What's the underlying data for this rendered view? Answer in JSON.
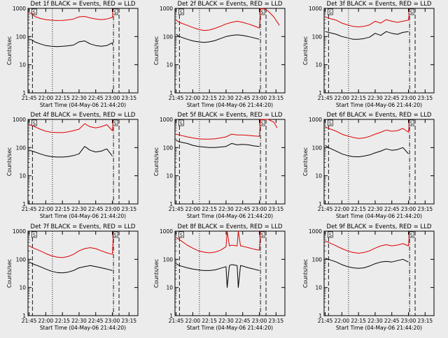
{
  "x_ticks": [
    "21:45",
    "22:00",
    "22:15",
    "22:30",
    "22:45",
    "23:00",
    "23:15"
  ],
  "y_ticks": [
    "1",
    "10",
    "100",
    "1000"
  ],
  "ylabel": "Counts/sec",
  "xlabel": "Start Time (04-May-06 21:44:20)",
  "marker_label": "S",
  "colors": {
    "events": "#000000",
    "lld": "#dd0000",
    "background": "#ececec"
  },
  "chart_data": [
    {
      "type": "line",
      "title": "Det 1f BLACK = Events, RED = LLD",
      "ylim": [
        1,
        1000
      ],
      "xlim": [
        "21:44",
        "23:23"
      ],
      "markers": [
        "21:48",
        "22:06",
        "23:01",
        "23:06"
      ],
      "series": [
        {
          "name": "Events",
          "x": [
            "21:45",
            "21:48",
            "21:50",
            "21:55",
            "22:00",
            "22:05",
            "22:10",
            "22:15",
            "22:20",
            "22:25",
            "22:30",
            "22:35",
            "22:40",
            "22:45",
            "22:50",
            "22:55",
            "23:00",
            "23:00"
          ],
          "y": [
            80,
            75,
            65,
            55,
            48,
            45,
            44,
            45,
            47,
            50,
            65,
            70,
            55,
            48,
            45,
            48,
            60,
            50
          ]
        },
        {
          "name": "LLD",
          "x": [
            "21:45",
            "21:48",
            "21:50",
            "21:55",
            "22:00",
            "22:05",
            "22:10",
            "22:15",
            "22:20",
            "22:25",
            "22:30",
            "22:35",
            "22:40",
            "22:45",
            "22:50",
            "22:55",
            "23:00",
            "23:01"
          ],
          "y": [
            700,
            650,
            520,
            440,
            400,
            380,
            370,
            375,
            390,
            420,
            500,
            520,
            460,
            420,
            400,
            420,
            480,
            1000
          ]
        }
      ]
    },
    {
      "type": "line",
      "title": "Det 2f BLACK = Events, RED = LLD",
      "ylim": [
        1,
        1000
      ],
      "xlim": [
        "21:44",
        "23:23"
      ],
      "markers": [
        "21:48",
        "22:06",
        "23:01",
        "23:06"
      ],
      "series": [
        {
          "name": "Events",
          "x": [
            "21:45",
            "21:48",
            "21:55",
            "22:00",
            "22:05",
            "22:10",
            "22:15",
            "22:20",
            "22:25",
            "22:30",
            "22:35",
            "22:40",
            "22:45",
            "22:50",
            "22:55",
            "23:00"
          ],
          "y": [
            120,
            100,
            80,
            70,
            65,
            62,
            65,
            72,
            85,
            100,
            110,
            115,
            110,
            100,
            90,
            80
          ]
        },
        {
          "name": "LLD",
          "x": [
            "21:45",
            "21:48",
            "21:55",
            "22:00",
            "22:05",
            "22:10",
            "22:15",
            "22:20",
            "22:25",
            "22:30",
            "22:35",
            "22:40",
            "22:45",
            "22:50",
            "22:55",
            "23:00",
            "23:01",
            "23:04",
            "23:08",
            "23:13",
            "23:18"
          ],
          "y": [
            380,
            320,
            250,
            210,
            180,
            165,
            170,
            195,
            230,
            280,
            320,
            350,
            320,
            280,
            240,
            200,
            1000,
            1000,
            800,
            500,
            250
          ]
        }
      ]
    },
    {
      "type": "line",
      "title": "Det 3f BLACK = Events, RED = LLD",
      "ylim": [
        1,
        1000
      ],
      "xlim": [
        "21:44",
        "23:23"
      ],
      "markers": [
        "21:48",
        "22:06",
        "23:01",
        "23:06"
      ],
      "series": [
        {
          "name": "Events",
          "x": [
            "21:45",
            "21:48",
            "21:55",
            "22:00",
            "22:05",
            "22:10",
            "22:15",
            "22:20",
            "22:25",
            "22:30",
            "22:35",
            "22:40",
            "22:45",
            "22:50",
            "22:55",
            "23:00"
          ],
          "y": [
            150,
            140,
            120,
            100,
            90,
            80,
            80,
            85,
            95,
            130,
            110,
            150,
            130,
            120,
            140,
            150
          ]
        },
        {
          "name": "LLD",
          "x": [
            "21:45",
            "21:48",
            "21:55",
            "22:00",
            "22:05",
            "22:10",
            "22:15",
            "22:20",
            "22:25",
            "22:30",
            "22:35",
            "22:40",
            "22:45",
            "22:50",
            "22:55",
            "23:00",
            "23:01"
          ],
          "y": [
            500,
            450,
            380,
            300,
            260,
            230,
            220,
            230,
            260,
            350,
            300,
            400,
            350,
            320,
            350,
            380,
            1000
          ]
        }
      ]
    },
    {
      "type": "line",
      "title": "Det 4f BLACK = Events, RED = LLD",
      "ylim": [
        1,
        1000
      ],
      "xlim": [
        "21:44",
        "23:23"
      ],
      "markers": [
        "21:48",
        "22:06",
        "23:01",
        "23:06"
      ],
      "series": [
        {
          "name": "Events",
          "x": [
            "21:45",
            "21:48",
            "21:55",
            "22:00",
            "22:05",
            "22:10",
            "22:15",
            "22:20",
            "22:25",
            "22:30",
            "22:35",
            "22:40",
            "22:45",
            "22:50",
            "22:55",
            "23:00"
          ],
          "y": [
            80,
            75,
            60,
            52,
            48,
            46,
            46,
            48,
            52,
            60,
            110,
            80,
            70,
            75,
            90,
            50
          ]
        },
        {
          "name": "LLD",
          "x": [
            "21:45",
            "21:48",
            "21:55",
            "22:00",
            "22:05",
            "22:10",
            "22:15",
            "22:20",
            "22:25",
            "22:30",
            "22:35",
            "22:40",
            "22:45",
            "22:50",
            "22:55",
            "23:00",
            "23:01"
          ],
          "y": [
            650,
            600,
            450,
            380,
            350,
            340,
            340,
            360,
            400,
            450,
            700,
            550,
            500,
            550,
            650,
            400,
            1000
          ]
        }
      ]
    },
    {
      "type": "line",
      "title": "Det 5f BLACK = Events, RED = LLD",
      "ylim": [
        1,
        1000
      ],
      "xlim": [
        "21:44",
        "23:23"
      ],
      "markers": [
        "21:48",
        "22:06",
        "23:01",
        "23:06"
      ],
      "series": [
        {
          "name": "Events",
          "x": [
            "21:45",
            "21:48",
            "21:55",
            "22:00",
            "22:05",
            "22:10",
            "22:15",
            "22:20",
            "22:25",
            "22:30",
            "22:35",
            "22:40",
            "22:45",
            "22:50",
            "22:55",
            "23:00"
          ],
          "y": [
            180,
            160,
            140,
            120,
            110,
            105,
            100,
            100,
            105,
            110,
            140,
            125,
            130,
            125,
            115,
            110
          ]
        },
        {
          "name": "LLD",
          "x": [
            "21:45",
            "21:48",
            "21:55",
            "22:00",
            "22:05",
            "22:10",
            "22:15",
            "22:20",
            "22:25",
            "22:30",
            "22:35",
            "22:40",
            "22:45",
            "22:50",
            "22:55",
            "23:00",
            "23:01",
            "23:08",
            "23:13",
            "23:16"
          ],
          "y": [
            300,
            280,
            240,
            220,
            205,
            200,
            200,
            205,
            220,
            240,
            300,
            280,
            280,
            270,
            260,
            250,
            1000,
            1000,
            800,
            500
          ]
        }
      ]
    },
    {
      "type": "line",
      "title": "Det 6f BLACK = Events, RED = LLD",
      "ylim": [
        1,
        1000
      ],
      "xlim": [
        "21:44",
        "23:23"
      ],
      "markers": [
        "21:48",
        "22:06",
        "23:01",
        "23:06"
      ],
      "series": [
        {
          "name": "Events",
          "x": [
            "21:45",
            "21:48",
            "21:55",
            "22:00",
            "22:05",
            "22:10",
            "22:15",
            "22:20",
            "22:25",
            "22:30",
            "22:35",
            "22:40",
            "22:45",
            "22:50",
            "22:55",
            "23:00"
          ],
          "y": [
            120,
            100,
            75,
            60,
            52,
            48,
            47,
            50,
            55,
            65,
            75,
            90,
            80,
            85,
            100,
            60
          ]
        },
        {
          "name": "LLD",
          "x": [
            "21:45",
            "21:48",
            "21:55",
            "22:00",
            "22:05",
            "22:10",
            "22:15",
            "22:20",
            "22:25",
            "22:30",
            "22:35",
            "22:40",
            "22:45",
            "22:50",
            "22:55",
            "23:00",
            "23:01"
          ],
          "y": [
            550,
            480,
            380,
            300,
            260,
            230,
            210,
            220,
            250,
            300,
            350,
            420,
            380,
            400,
            480,
            350,
            1000
          ]
        }
      ]
    },
    {
      "type": "line",
      "title": "Det 7f BLACK = Events, RED = LLD",
      "ylim": [
        1,
        1000
      ],
      "xlim": [
        "21:44",
        "23:23"
      ],
      "markers": [
        "21:48",
        "22:06",
        "23:01",
        "23:06"
      ],
      "series": [
        {
          "name": "Events",
          "x": [
            "21:45",
            "21:48",
            "21:55",
            "22:00",
            "22:05",
            "22:10",
            "22:15",
            "22:20",
            "22:25",
            "22:30",
            "22:35",
            "22:40",
            "22:45",
            "22:50",
            "22:55",
            "23:00"
          ],
          "y": [
            80,
            70,
            55,
            45,
            38,
            34,
            33,
            35,
            40,
            50,
            55,
            60,
            55,
            50,
            45,
            40
          ]
        },
        {
          "name": "LLD",
          "x": [
            "21:45",
            "21:48",
            "21:55",
            "22:00",
            "22:05",
            "22:10",
            "22:15",
            "22:20",
            "22:25",
            "22:30",
            "22:35",
            "22:40",
            "22:45",
            "22:50",
            "22:55",
            "23:00",
            "23:01"
          ],
          "y": [
            300,
            260,
            200,
            160,
            135,
            120,
            115,
            125,
            150,
            200,
            240,
            260,
            240,
            200,
            170,
            150,
            1000
          ]
        }
      ]
    },
    {
      "type": "line",
      "title": "Det 8f BLACK = Events, RED = LLD",
      "ylim": [
        1,
        1000
      ],
      "xlim": [
        "21:44",
        "23:23"
      ],
      "markers": [
        "21:48",
        "22:06",
        "23:01",
        "23:06"
      ],
      "series": [
        {
          "name": "Events",
          "x": [
            "21:45",
            "21:48",
            "21:55",
            "22:00",
            "22:05",
            "22:10",
            "22:15",
            "22:20",
            "22:25",
            "22:30",
            "22:31",
            "22:33",
            "22:35",
            "22:40",
            "22:41",
            "22:43",
            "22:45",
            "22:50",
            "22:55",
            "23:00"
          ],
          "y": [
            70,
            60,
            50,
            45,
            42,
            40,
            40,
            42,
            48,
            55,
            10,
            60,
            65,
            60,
            10,
            60,
            58,
            50,
            45,
            40
          ]
        },
        {
          "name": "LLD",
          "x": [
            "21:45",
            "21:48",
            "21:55",
            "22:00",
            "22:05",
            "22:10",
            "22:15",
            "22:20",
            "22:25",
            "22:30",
            "22:31",
            "22:33",
            "22:35",
            "22:40",
            "22:41",
            "22:43",
            "22:45",
            "22:50",
            "22:55",
            "23:00",
            "23:01"
          ],
          "y": [
            600,
            500,
            320,
            250,
            200,
            180,
            170,
            180,
            210,
            280,
            1000,
            300,
            320,
            300,
            1000,
            300,
            290,
            260,
            230,
            210,
            1000
          ]
        }
      ]
    },
    {
      "type": "line",
      "title": "Det 9f BLACK = Events, RED = LLD",
      "ylim": [
        1,
        1000
      ],
      "xlim": [
        "21:44",
        "23:23"
      ],
      "markers": [
        "21:48",
        "22:06",
        "23:01",
        "23:06"
      ],
      "series": [
        {
          "name": "Events",
          "x": [
            "21:45",
            "21:48",
            "21:55",
            "22:00",
            "22:05",
            "22:10",
            "22:15",
            "22:20",
            "22:25",
            "22:30",
            "22:35",
            "22:40",
            "22:45",
            "22:50",
            "22:55",
            "23:00"
          ],
          "y": [
            110,
            100,
            80,
            65,
            55,
            50,
            48,
            50,
            58,
            70,
            80,
            85,
            80,
            90,
            100,
            80
          ]
        },
        {
          "name": "LLD",
          "x": [
            "21:45",
            "21:48",
            "21:55",
            "22:00",
            "22:05",
            "22:10",
            "22:15",
            "22:20",
            "22:25",
            "22:30",
            "22:35",
            "22:40",
            "22:45",
            "22:50",
            "22:55",
            "23:00",
            "23:01"
          ],
          "y": [
            450,
            400,
            300,
            240,
            200,
            175,
            165,
            175,
            200,
            250,
            300,
            330,
            300,
            320,
            360,
            300,
            1000
          ]
        }
      ]
    }
  ]
}
